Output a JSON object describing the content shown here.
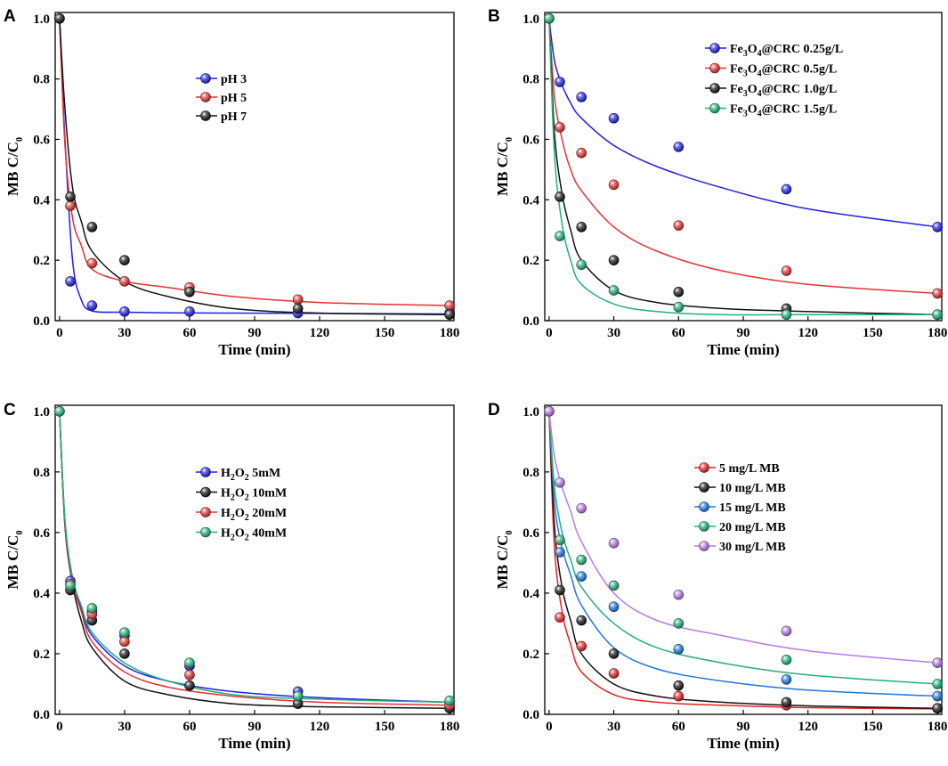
{
  "chart_data": [
    {
      "panel": "A",
      "type": "scatter",
      "xlabel": "Time (min)",
      "ylabel": "MB C/C",
      "ylabel_sub": "0",
      "xlim": [
        -2,
        182
      ],
      "ylim": [
        0,
        1.02
      ],
      "xticks": [
        0,
        30,
        60,
        90,
        120,
        150,
        180
      ],
      "yticks": [
        0.0,
        0.2,
        0.4,
        0.6,
        0.8,
        1.0
      ],
      "legend_position": "upper-middle",
      "series": [
        {
          "name": "pH 3",
          "color": "#1f1fe6",
          "x": [
            0,
            5,
            15,
            30,
            60,
            110,
            180
          ],
          "y": [
            1.0,
            0.13,
            0.05,
            0.03,
            0.03,
            0.025,
            0.025
          ],
          "fit": [
            1.0,
            0.6,
            0.2,
            0.07,
            0.032,
            0.028,
            0.026,
            0.025,
            0.024,
            0.022
          ]
        },
        {
          "name": "pH 5",
          "color": "#e63232",
          "x": [
            0,
            5,
            15,
            30,
            60,
            110,
            180
          ],
          "y": [
            1.0,
            0.38,
            0.19,
            0.13,
            0.11,
            0.07,
            0.05
          ],
          "fit": [
            1.0,
            0.58,
            0.34,
            0.25,
            0.17,
            0.13,
            0.11,
            0.08,
            0.06,
            0.05
          ]
        },
        {
          "name": "pH 7",
          "color": "#111111",
          "x": [
            0,
            5,
            15,
            30,
            60,
            110,
            180
          ],
          "y": [
            1.0,
            0.41,
            0.31,
            0.2,
            0.095,
            0.04,
            0.02
          ],
          "fit": [
            1.0,
            0.7,
            0.44,
            0.33,
            0.23,
            0.13,
            0.08,
            0.04,
            0.025,
            0.02
          ]
        }
      ]
    },
    {
      "panel": "B",
      "type": "scatter",
      "xlabel": "Time (min)",
      "ylabel": "MB C/C",
      "ylabel_sub": "0",
      "xlim": [
        -2,
        182
      ],
      "ylim": [
        0,
        1.02
      ],
      "xticks": [
        0,
        30,
        60,
        90,
        120,
        150,
        180
      ],
      "yticks": [
        0.0,
        0.2,
        0.4,
        0.6,
        0.8,
        1.0
      ],
      "legend_position": "top-right",
      "series": [
        {
          "name": "Fe3O4@CRC 0.25g/L",
          "label_parts": [
            "Fe",
            "3",
            "O",
            "4",
            "@CRC 0.25g/L"
          ],
          "color": "#1f1fe6",
          "x": [
            0,
            5,
            15,
            30,
            60,
            110,
            180
          ],
          "y": [
            1.0,
            0.79,
            0.74,
            0.67,
            0.575,
            0.435,
            0.31
          ],
          "fit": [
            1.0,
            0.86,
            0.78,
            0.72,
            0.67,
            0.58,
            0.51,
            0.44,
            0.37,
            0.31
          ]
        },
        {
          "name": "Fe3O4@CRC 0.5g/L",
          "label_parts": [
            "Fe",
            "3",
            "O",
            "4",
            "@CRC 0.5g/L"
          ],
          "color": "#e63232",
          "x": [
            0,
            5,
            15,
            30,
            60,
            110,
            180
          ],
          "y": [
            1.0,
            0.64,
            0.555,
            0.45,
            0.315,
            0.165,
            0.09
          ],
          "fit": [
            1.0,
            0.74,
            0.6,
            0.5,
            0.43,
            0.31,
            0.23,
            0.165,
            0.12,
            0.09
          ]
        },
        {
          "name": "Fe3O4@CRC 1.0g/L",
          "label_parts": [
            "Fe",
            "3",
            "O",
            "4",
            "@CRC 1.0g/L"
          ],
          "color": "#111111",
          "x": [
            0,
            5,
            15,
            30,
            60,
            110,
            180
          ],
          "y": [
            1.0,
            0.41,
            0.31,
            0.2,
            0.095,
            0.04,
            0.02
          ],
          "fit": [
            1.0,
            0.62,
            0.42,
            0.3,
            0.2,
            0.1,
            0.06,
            0.04,
            0.03,
            0.02
          ]
        },
        {
          "name": "Fe3O4@CRC 1.5g/L",
          "label_parts": [
            "Fe",
            "3",
            "O",
            "4",
            "@CRC 1.5g/L"
          ],
          "color": "#22b07a",
          "x": [
            0,
            5,
            15,
            30,
            60,
            110,
            180
          ],
          "y": [
            1.0,
            0.28,
            0.185,
            0.1,
            0.045,
            0.02,
            0.02
          ],
          "fit": [
            1.0,
            0.55,
            0.32,
            0.2,
            0.12,
            0.055,
            0.03,
            0.02,
            0.02,
            0.02
          ]
        }
      ]
    },
    {
      "panel": "C",
      "type": "scatter",
      "xlabel": "Time (min)",
      "ylabel": "MB C/C",
      "ylabel_sub": "0",
      "xlim": [
        -2,
        182
      ],
      "ylim": [
        0,
        1.02
      ],
      "xticks": [
        0,
        30,
        60,
        90,
        120,
        150,
        180
      ],
      "yticks": [
        0.0,
        0.2,
        0.4,
        0.6,
        0.8,
        1.0
      ],
      "legend_position": "upper-middle",
      "series": [
        {
          "name": "H2O2 5mM",
          "label_parts": [
            "H",
            "2",
            "O",
            "2",
            "  5mM"
          ],
          "color": "#1f1fe6",
          "x": [
            0,
            5,
            15,
            30,
            60,
            110,
            180
          ],
          "y": [
            1.0,
            0.44,
            0.34,
            0.26,
            0.16,
            0.075,
            0.04
          ],
          "fit": [
            1.0,
            0.64,
            0.45,
            0.35,
            0.26,
            0.16,
            0.11,
            0.075,
            0.055,
            0.04
          ]
        },
        {
          "name": "H2O2 10mM",
          "label_parts": [
            "H",
            "2",
            "O",
            "2",
            "  10mM"
          ],
          "color": "#111111",
          "x": [
            0,
            5,
            15,
            30,
            60,
            110,
            180
          ],
          "y": [
            1.0,
            0.41,
            0.31,
            0.2,
            0.095,
            0.035,
            0.02
          ],
          "fit": [
            1.0,
            0.62,
            0.43,
            0.31,
            0.22,
            0.11,
            0.065,
            0.035,
            0.025,
            0.02
          ]
        },
        {
          "name": "H2O2 20mM",
          "label_parts": [
            "H",
            "2",
            "O",
            "2",
            "  20mM"
          ],
          "color": "#e63232",
          "x": [
            0,
            5,
            15,
            30,
            60,
            110,
            180
          ],
          "y": [
            1.0,
            0.43,
            0.33,
            0.24,
            0.13,
            0.06,
            0.03
          ],
          "fit": [
            1.0,
            0.63,
            0.44,
            0.34,
            0.24,
            0.14,
            0.09,
            0.06,
            0.04,
            0.03
          ]
        },
        {
          "name": "H2O2 40mM",
          "label_parts": [
            "H",
            "2",
            "O",
            "2",
            "  40mM"
          ],
          "color": "#22b07a",
          "x": [
            0,
            5,
            15,
            30,
            60,
            110,
            180
          ],
          "y": [
            1.0,
            0.425,
            0.35,
            0.27,
            0.17,
            0.06,
            0.045
          ],
          "fit": [
            1.0,
            0.64,
            0.45,
            0.36,
            0.27,
            0.17,
            0.11,
            0.065,
            0.05,
            0.04
          ]
        }
      ]
    },
    {
      "panel": "D",
      "type": "scatter",
      "xlabel": "Time (min)",
      "ylabel": "MB C/C",
      "ylabel_sub": "0",
      "xlim": [
        -2,
        182
      ],
      "ylim": [
        0,
        1.02
      ],
      "xticks": [
        0,
        30,
        60,
        90,
        120,
        150,
        180
      ],
      "yticks": [
        0.0,
        0.2,
        0.4,
        0.6,
        0.8,
        1.0
      ],
      "legend_position": "upper-middle",
      "series": [
        {
          "name": "5 mg/L MB",
          "label": " 5 mg/L MB",
          "color": "#e82222",
          "x": [
            0,
            5,
            15,
            30,
            60,
            110,
            180
          ],
          "y": [
            1.0,
            0.32,
            0.225,
            0.135,
            0.06,
            0.03,
            0.02
          ],
          "fit": [
            1.0,
            0.55,
            0.34,
            0.23,
            0.14,
            0.065,
            0.04,
            0.03,
            0.022,
            0.018
          ]
        },
        {
          "name": "10 mg/L MB",
          "label": "10 mg/L MB",
          "color": "#111111",
          "x": [
            0,
            5,
            15,
            30,
            60,
            110,
            180
          ],
          "y": [
            1.0,
            0.41,
            0.31,
            0.2,
            0.095,
            0.04,
            0.02
          ],
          "fit": [
            1.0,
            0.62,
            0.42,
            0.31,
            0.2,
            0.1,
            0.06,
            0.04,
            0.028,
            0.02
          ]
        },
        {
          "name": "15 mg/L MB",
          "label": "15 mg/L MB",
          "color": "#1e78dc",
          "x": [
            0,
            5,
            15,
            30,
            60,
            110,
            180
          ],
          "y": [
            1.0,
            0.535,
            0.455,
            0.355,
            0.215,
            0.115,
            0.06
          ],
          "fit": [
            1.0,
            0.7,
            0.55,
            0.46,
            0.36,
            0.22,
            0.15,
            0.11,
            0.08,
            0.06
          ]
        },
        {
          "name": "20 mg/L MB",
          "label": "20 mg/L MB",
          "color": "#22b07a",
          "x": [
            0,
            5,
            15,
            30,
            60,
            110,
            180
          ],
          "y": [
            1.0,
            0.575,
            0.51,
            0.425,
            0.3,
            0.18,
            0.1
          ],
          "fit": [
            1.0,
            0.75,
            0.6,
            0.51,
            0.42,
            0.3,
            0.22,
            0.17,
            0.13,
            0.1
          ]
        },
        {
          "name": "30 mg/L MB",
          "label": "30 mg/L MB",
          "color": "#b77be6",
          "x": [
            0,
            5,
            15,
            30,
            60,
            110,
            180
          ],
          "y": [
            1.0,
            0.765,
            0.68,
            0.565,
            0.395,
            0.275,
            0.17
          ],
          "fit": [
            1.0,
            0.85,
            0.75,
            0.67,
            0.57,
            0.4,
            0.31,
            0.26,
            0.21,
            0.17
          ]
        }
      ]
    }
  ],
  "fit_x": [
    0,
    2.5,
    6,
    10,
    15,
    30,
    50,
    80,
    120,
    180
  ]
}
